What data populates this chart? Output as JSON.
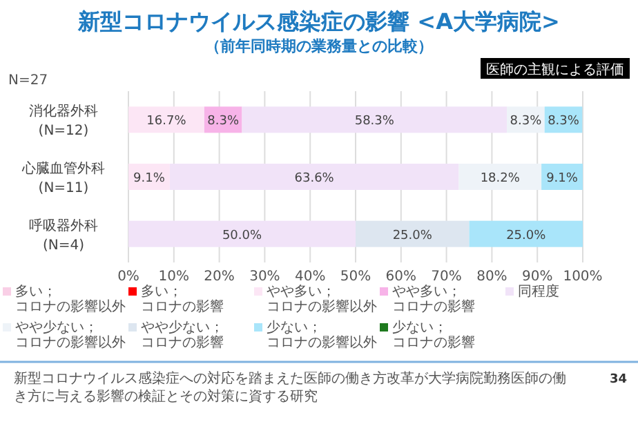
{
  "chart_data": {
    "type": "bar",
    "orientation": "horizontal",
    "stacked": true,
    "title": "新型コロナウイルス感染症の影響 <A大学病院>",
    "subtitle": "（前年同時期の業務量との比較）",
    "annotations": [
      "N=27",
      "医師の主観による評価",
      "新型コロナウイルス感染症への対応を踏まえた医師の働き方改革が大学病院勤務医師の働き方に与える影響の検証とその対策に資する研究",
      "34"
    ],
    "categories": [
      "消化器外科 (N=12)",
      "心臓血管外科 (N=11)",
      "呼吸器外科 (N=4)"
    ],
    "xlim": [
      0,
      100
    ],
    "xticks": [
      {
        "value": 0,
        "label": "0%"
      },
      {
        "value": 10,
        "label": "10%"
      },
      {
        "value": 20,
        "label": "20%"
      },
      {
        "value": 30,
        "label": "30%"
      },
      {
        "value": 40,
        "label": "40%"
      },
      {
        "value": 50,
        "label": "50%"
      },
      {
        "value": 60,
        "label": "60%"
      },
      {
        "value": 70,
        "label": "70%"
      },
      {
        "value": 80,
        "label": "80%"
      },
      {
        "value": 90,
        "label": "90%"
      },
      {
        "value": 100,
        "label": "100%"
      }
    ],
    "grid": "x",
    "legend": "bottom",
    "series": [
      {
        "name": "多い；コロナの影響以外",
        "color": "#f9cfe6",
        "values": [
          0,
          0,
          0
        ],
        "value_labels": [
          null,
          null,
          null
        ]
      },
      {
        "name": "多い；コロナの影響",
        "color": "#ff0000",
        "values": [
          0,
          0,
          0
        ],
        "value_labels": [
          null,
          null,
          null
        ]
      },
      {
        "name": "やや多い；コロナの影響以外",
        "color": "#fce6f5",
        "values": [
          16.7,
          9.1,
          0
        ],
        "value_labels": [
          "16.7%",
          "9.1%",
          null
        ]
      },
      {
        "name": "やや多い；コロナの影響",
        "color": "#f7b3e8",
        "values": [
          8.3,
          0,
          0
        ],
        "value_labels": [
          "8.3%",
          null,
          null
        ]
      },
      {
        "name": "同程度",
        "color": "#f1e3f8",
        "values": [
          58.3,
          63.6,
          50.0
        ],
        "value_labels": [
          "58.3%",
          "63.6%",
          "50.0%"
        ]
      },
      {
        "name": "やや少ない；コロナの影響以外",
        "color": "#eef3f8",
        "values": [
          8.3,
          18.2,
          0
        ],
        "value_labels": [
          "8.3%",
          "18.2%",
          null
        ]
      },
      {
        "name": "やや少ない；コロナの影響",
        "color": "#dde6f0",
        "values": [
          0,
          0,
          25.0
        ],
        "value_labels": [
          null,
          null,
          "25.0%"
        ]
      },
      {
        "name": "少ない；コロナの影響以外",
        "color": "#a9e5fa",
        "values": [
          8.3,
          9.1,
          25.0
        ],
        "value_labels": [
          "8.3%",
          "9.1%",
          "25.0%"
        ]
      },
      {
        "name": "少ない；コロナの影響",
        "color": "#1f7a1f",
        "values": [
          0,
          0,
          0
        ],
        "value_labels": [
          null,
          null,
          null
        ]
      }
    ]
  }
}
